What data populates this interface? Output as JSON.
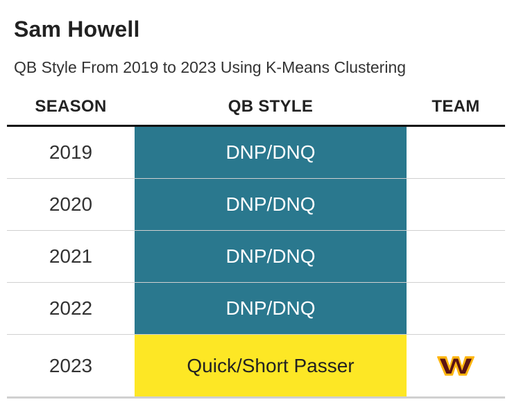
{
  "title": "Sam Howell",
  "subtitle": "QB Style From 2019 to 2023 Using K-Means Clustering",
  "headers": {
    "season": "SEASON",
    "qb_style": "QB STYLE",
    "team": "TEAM"
  },
  "rows": [
    {
      "season": "2019",
      "qb_style": "DNP/DNQ",
      "style_color": "#2a788e",
      "team_logo": ""
    },
    {
      "season": "2020",
      "qb_style": "DNP/DNQ",
      "style_color": "#2a788e",
      "team_logo": ""
    },
    {
      "season": "2021",
      "qb_style": "DNP/DNQ",
      "style_color": "#2a788e",
      "team_logo": ""
    },
    {
      "season": "2022",
      "qb_style": "DNP/DNQ",
      "style_color": "#2a788e",
      "team_logo": ""
    },
    {
      "season": "2023",
      "qb_style": "Quick/Short Passer",
      "style_color": "#fde725",
      "team_logo": "washington-commanders-logo-icon"
    }
  ],
  "colors": {
    "dnp": "#2a788e",
    "quick_short": "#fde725",
    "logo_burgundy": "#5a1414",
    "logo_gold": "#ffb612"
  }
}
